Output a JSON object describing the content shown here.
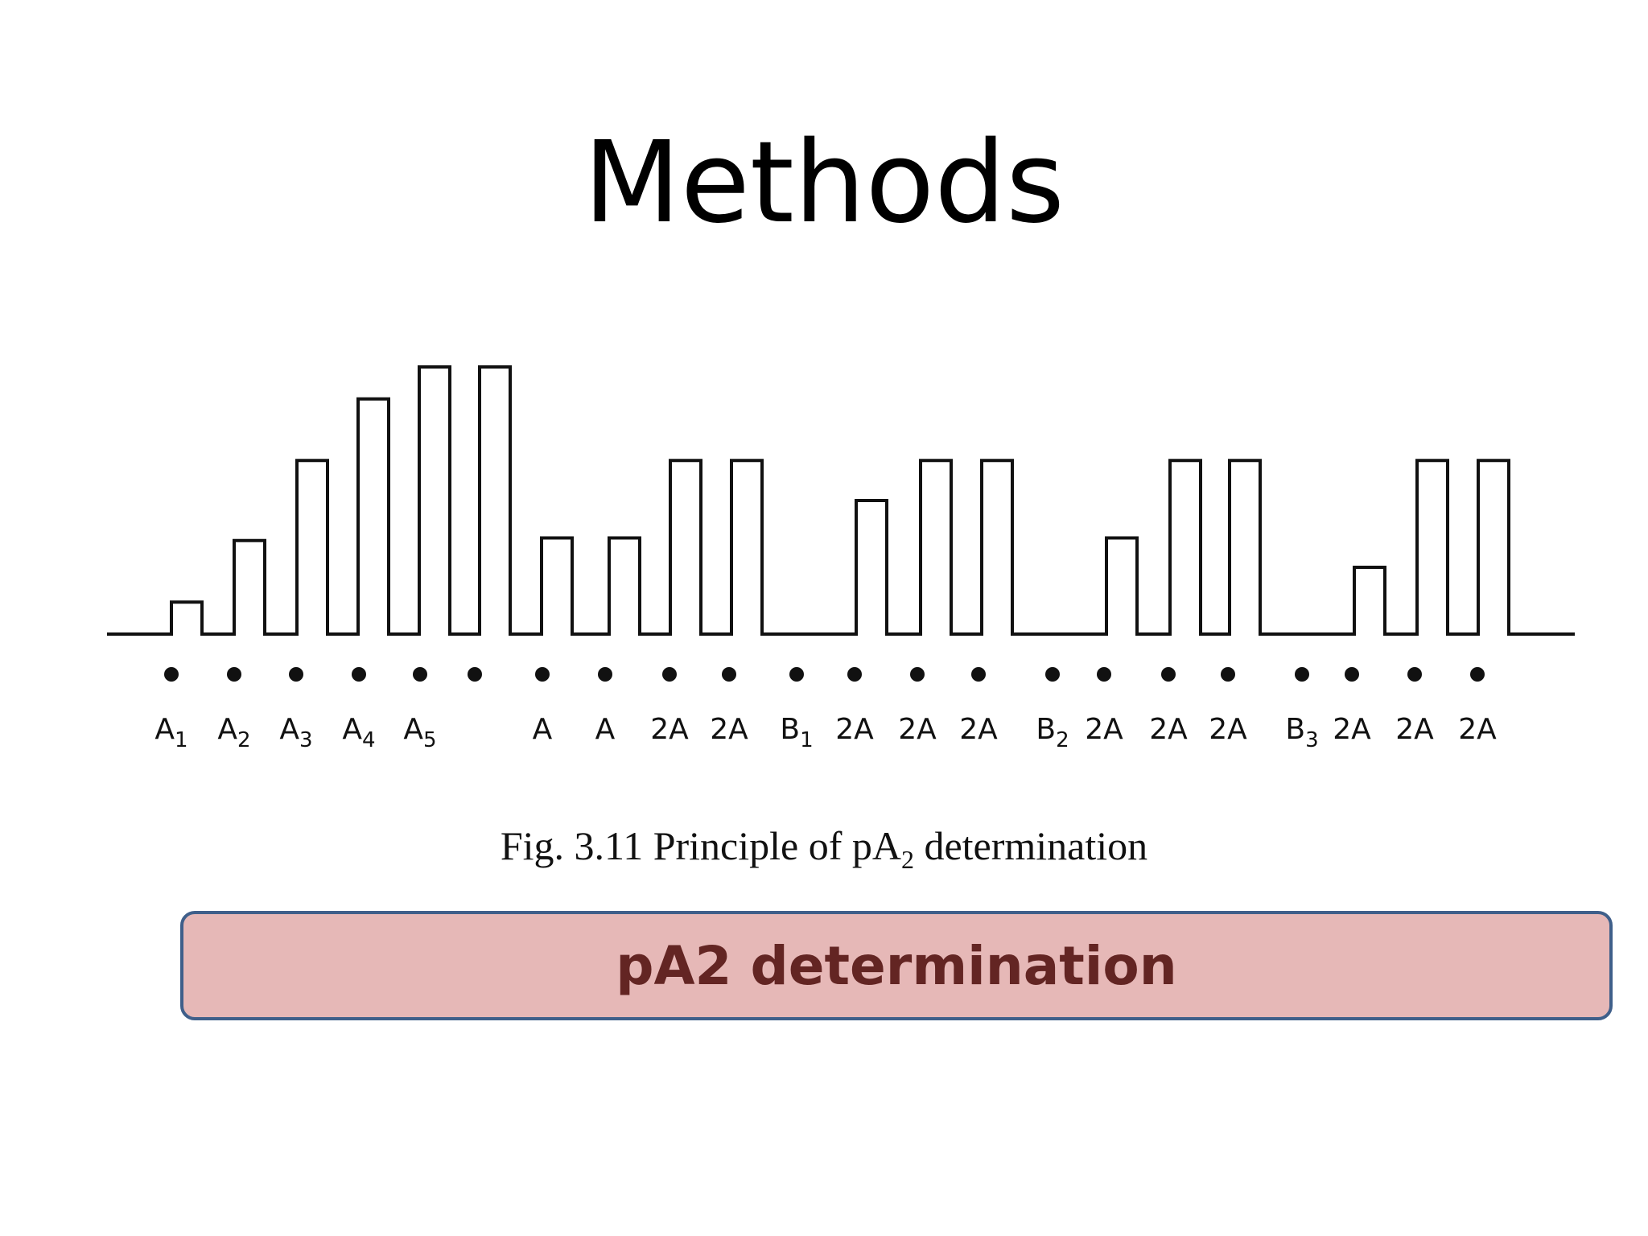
{
  "slide": {
    "title": "Methods"
  },
  "figure": {
    "caption_prefix": "Fig. 3.11  Principle of pA",
    "caption_sub": "2",
    "caption_suffix": " determination",
    "responses": [
      0.12,
      0.35,
      0.65,
      0.88,
      1.0,
      1.0,
      0.36,
      0.36,
      0.65,
      0.65,
      0.5,
      0.65,
      0.65,
      0.36,
      0.65,
      0.65,
      0.25,
      0.65,
      0.65
    ],
    "dose_labels": [
      {
        "main": "A",
        "sub": "1"
      },
      {
        "main": "A",
        "sub": "2"
      },
      {
        "main": "A",
        "sub": "3"
      },
      {
        "main": "A",
        "sub": "4"
      },
      {
        "main": "A",
        "sub": "5"
      },
      {
        "main": "",
        "sub": ""
      },
      {
        "main": "A",
        "sub": ""
      },
      {
        "main": "A",
        "sub": ""
      },
      {
        "main": "2A",
        "sub": ""
      },
      {
        "main": "2A",
        "sub": ""
      },
      {
        "main": "B",
        "sub": "1"
      },
      {
        "main": "2A",
        "sub": ""
      },
      {
        "main": "2A",
        "sub": ""
      },
      {
        "main": "2A",
        "sub": ""
      },
      {
        "main": "B",
        "sub": "2"
      },
      {
        "main": "2A",
        "sub": ""
      },
      {
        "main": "2A",
        "sub": ""
      },
      {
        "main": "2A",
        "sub": ""
      },
      {
        "main": "B",
        "sub": "3"
      },
      {
        "main": "2A",
        "sub": ""
      },
      {
        "main": "2A",
        "sub": ""
      },
      {
        "main": "2A",
        "sub": ""
      }
    ]
  },
  "banner": {
    "text": "pA2 determination"
  }
}
